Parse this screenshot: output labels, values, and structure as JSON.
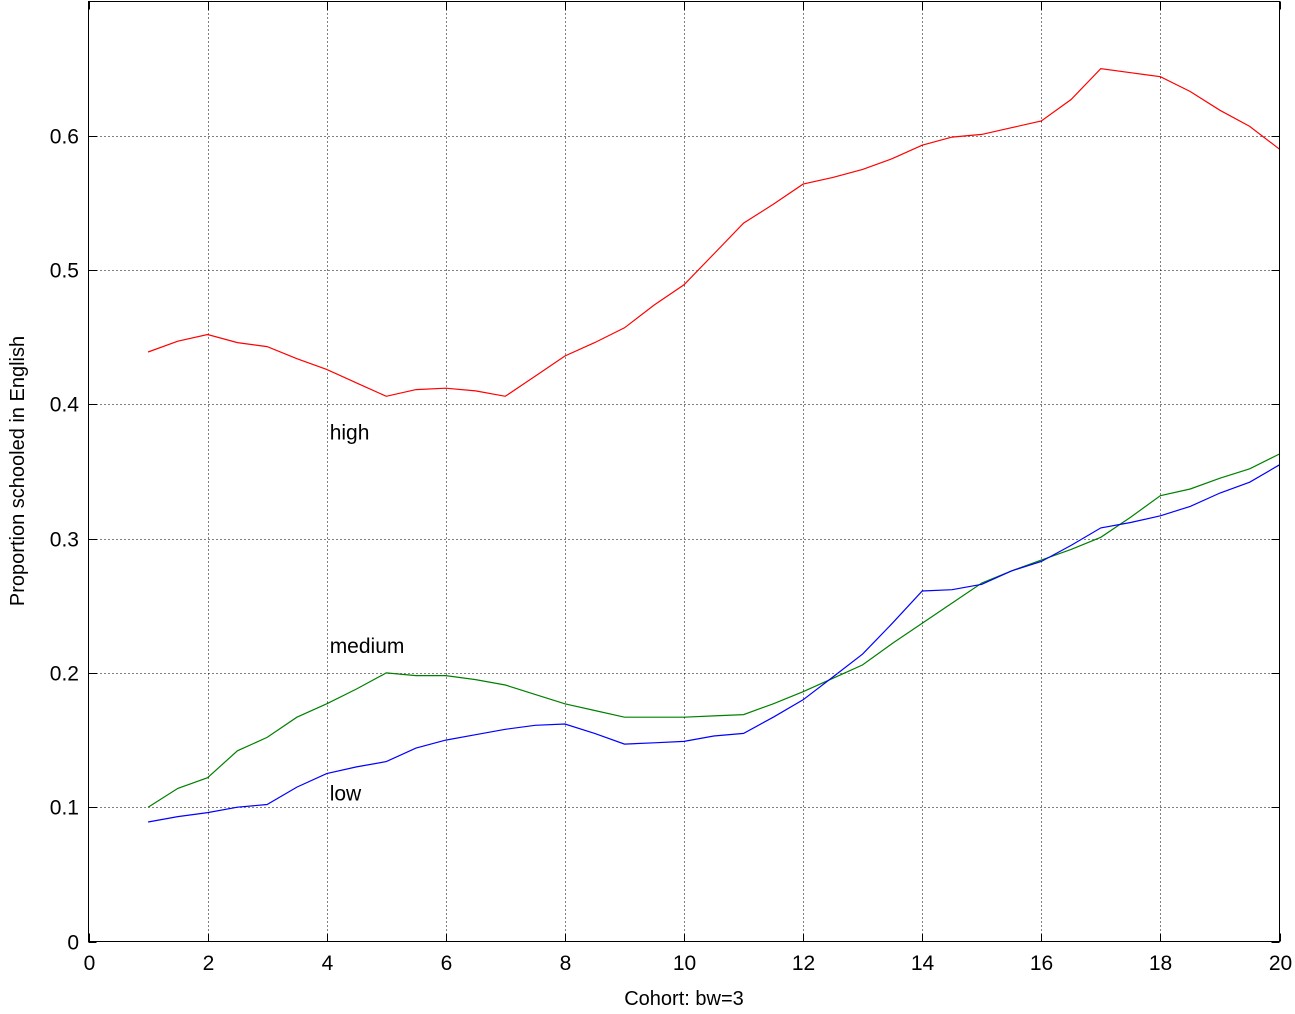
{
  "chart_data": {
    "type": "line",
    "title": "",
    "xlabel": "Cohort: bw=3",
    "ylabel": "Proportion schooled in English",
    "xlim": [
      0,
      20
    ],
    "ylim": [
      0,
      0.7
    ],
    "x_ticks": [
      0,
      2,
      4,
      6,
      8,
      10,
      12,
      14,
      16,
      18,
      20
    ],
    "y_ticks": [
      0,
      0.1,
      0.2,
      0.3,
      0.4,
      0.5,
      0.6
    ],
    "x_tick_labels": [
      "0",
      "2",
      "4",
      "6",
      "8",
      "10",
      "12",
      "14",
      "16",
      "18",
      "20"
    ],
    "y_tick_labels": [
      "0",
      "0.1",
      "0.2",
      "0.3",
      "0.4",
      "0.5",
      "0.6"
    ],
    "grid": true,
    "x": [
      1,
      1.5,
      2,
      2.5,
      3,
      3.5,
      4,
      4.5,
      5,
      5.5,
      6,
      6.5,
      7,
      7.5,
      8,
      8.5,
      9,
      9.5,
      10,
      10.5,
      11,
      11.5,
      12,
      12.5,
      13,
      13.5,
      14,
      14.5,
      15,
      15.5,
      16,
      16.5,
      17,
      17.5,
      18,
      18.5,
      19,
      19.5,
      20
    ],
    "series": [
      {
        "name": "high",
        "color": "#ff0000",
        "values": [
          0.439,
          0.447,
          0.452,
          0.446,
          0.443,
          0.434,
          0.426,
          0.416,
          0.406,
          0.411,
          0.412,
          0.41,
          0.406,
          0.421,
          0.436,
          0.446,
          0.457,
          0.474,
          0.489,
          0.512,
          0.535,
          0.549,
          0.564,
          0.569,
          0.575,
          0.583,
          0.593,
          0.599,
          0.601,
          0.606,
          0.611,
          0.627,
          0.65,
          0.647,
          0.644,
          0.633,
          0.619,
          0.607,
          0.59
        ],
        "label_x": 4.0,
        "label_y": 0.374
      },
      {
        "name": "medium",
        "color": "#008000",
        "values": [
          0.1,
          0.114,
          0.122,
          0.142,
          0.152,
          0.167,
          0.177,
          0.188,
          0.2,
          0.198,
          0.198,
          0.195,
          0.191,
          0.184,
          0.177,
          0.172,
          0.167,
          0.167,
          0.167,
          0.168,
          0.169,
          0.177,
          0.186,
          0.196,
          0.206,
          0.222,
          0.237,
          0.252,
          0.267,
          0.276,
          0.284,
          0.292,
          0.301,
          0.316,
          0.332,
          0.337,
          0.345,
          0.352,
          0.363
        ],
        "label_x": 4.0,
        "label_y": 0.215
      },
      {
        "name": "low",
        "color": "#0000ff",
        "values": [
          0.089,
          0.093,
          0.096,
          0.1,
          0.102,
          0.115,
          0.125,
          0.13,
          0.134,
          0.144,
          0.15,
          0.154,
          0.158,
          0.161,
          0.162,
          0.155,
          0.147,
          0.148,
          0.149,
          0.153,
          0.155,
          0.167,
          0.18,
          0.197,
          0.214,
          0.237,
          0.261,
          0.262,
          0.266,
          0.276,
          0.283,
          0.295,
          0.308,
          0.312,
          0.317,
          0.324,
          0.334,
          0.342,
          0.355
        ],
        "label_x": 4.0,
        "label_y": 0.105
      }
    ]
  }
}
